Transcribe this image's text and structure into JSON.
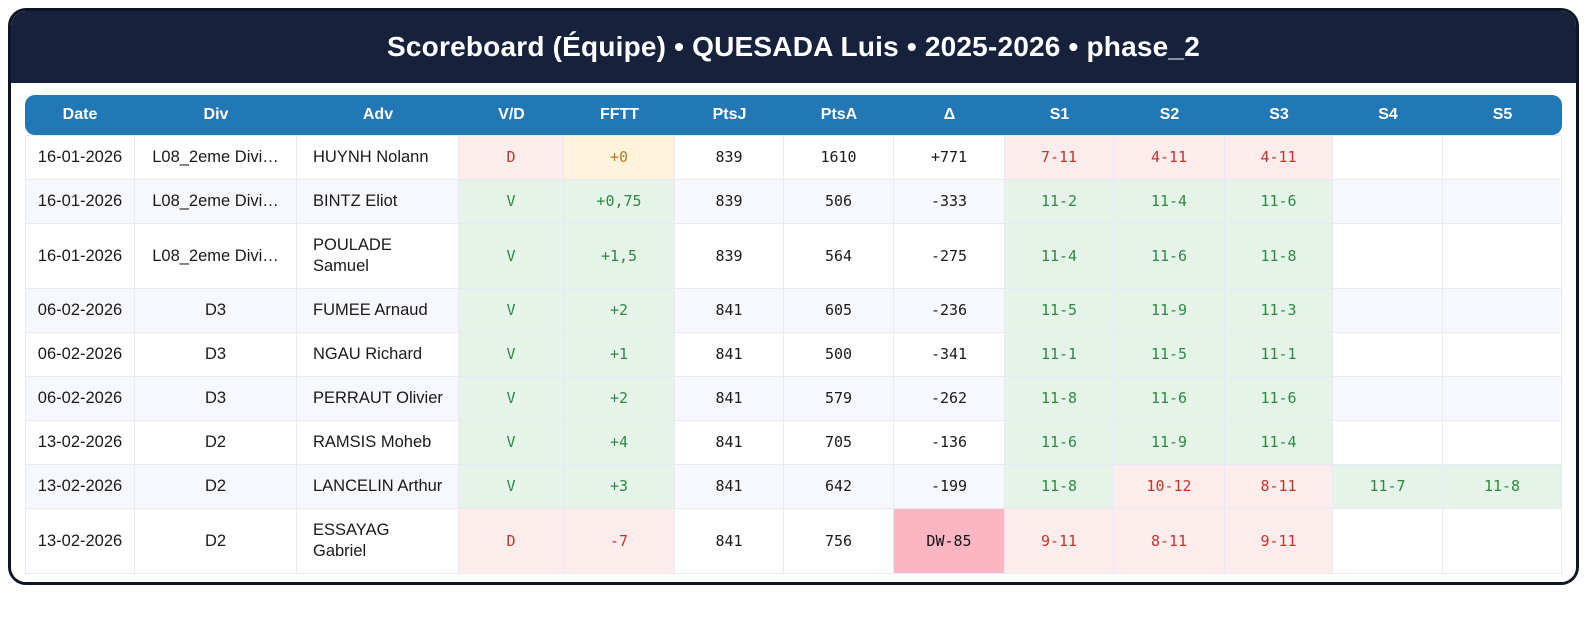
{
  "title": "Scoreboard (Équipe) • QUESADA Luis • 2025-2026 • phase_2",
  "colors": {
    "title_bar_bg": "#16213c",
    "table_header_bg": "#2278b5",
    "win_bg": "#e6f3e9",
    "win_text": "#2c8a43",
    "loss_bg": "#fdecec",
    "loss_text": "#c5332d",
    "zero_bg": "#fcf3da",
    "zero_text": "#b2801c",
    "dw_bg": "#fcb5c2",
    "alt_row_bg": "#f7f8fd"
  },
  "table": {
    "columns": [
      {
        "key": "date",
        "label": "Date"
      },
      {
        "key": "div",
        "label": "Div"
      },
      {
        "key": "adv",
        "label": "Adv"
      },
      {
        "key": "vd",
        "label": "V/D"
      },
      {
        "key": "fftt",
        "label": "FFTT"
      },
      {
        "key": "ptsj",
        "label": "PtsJ"
      },
      {
        "key": "ptsa",
        "label": "PtsA"
      },
      {
        "key": "delta",
        "label": "Δ"
      },
      {
        "key": "s1",
        "label": "S1"
      },
      {
        "key": "s2",
        "label": "S2"
      },
      {
        "key": "s3",
        "label": "S3"
      },
      {
        "key": "s4",
        "label": "S4"
      },
      {
        "key": "s5",
        "label": "S5"
      }
    ],
    "rows": [
      {
        "date": "16-01-2026",
        "div": "L08_2eme Divi…",
        "adv": "HUYNH Nolann",
        "vd": {
          "text": "D",
          "state": "loss"
        },
        "fftt": {
          "text": "+0",
          "state": "zero"
        },
        "ptsj": "839",
        "ptsa": "1610",
        "delta": {
          "text": "+771",
          "state": "normal"
        },
        "sets": [
          {
            "text": "7-11",
            "state": "loss"
          },
          {
            "text": "4-11",
            "state": "loss"
          },
          {
            "text": "4-11",
            "state": "loss"
          },
          {
            "text": "",
            "state": "empty"
          },
          {
            "text": "",
            "state": "empty"
          }
        ]
      },
      {
        "date": "16-01-2026",
        "div": "L08_2eme Divi…",
        "adv": "BINTZ Eliot",
        "vd": {
          "text": "V",
          "state": "win"
        },
        "fftt": {
          "text": "+0,75",
          "state": "win"
        },
        "ptsj": "839",
        "ptsa": "506",
        "delta": {
          "text": "-333",
          "state": "normal"
        },
        "sets": [
          {
            "text": "11-2",
            "state": "win"
          },
          {
            "text": "11-4",
            "state": "win"
          },
          {
            "text": "11-6",
            "state": "win"
          },
          {
            "text": "",
            "state": "empty"
          },
          {
            "text": "",
            "state": "empty"
          }
        ]
      },
      {
        "date": "16-01-2026",
        "div": "L08_2eme Divi…",
        "adv": "POULADE Samuel",
        "vd": {
          "text": "V",
          "state": "win"
        },
        "fftt": {
          "text": "+1,5",
          "state": "win"
        },
        "ptsj": "839",
        "ptsa": "564",
        "delta": {
          "text": "-275",
          "state": "normal"
        },
        "sets": [
          {
            "text": "11-4",
            "state": "win"
          },
          {
            "text": "11-6",
            "state": "win"
          },
          {
            "text": "11-8",
            "state": "win"
          },
          {
            "text": "",
            "state": "empty"
          },
          {
            "text": "",
            "state": "empty"
          }
        ]
      },
      {
        "date": "06-02-2026",
        "div": "D3",
        "adv": "FUMEE Arnaud",
        "vd": {
          "text": "V",
          "state": "win"
        },
        "fftt": {
          "text": "+2",
          "state": "win"
        },
        "ptsj": "841",
        "ptsa": "605",
        "delta": {
          "text": "-236",
          "state": "normal"
        },
        "sets": [
          {
            "text": "11-5",
            "state": "win"
          },
          {
            "text": "11-9",
            "state": "win"
          },
          {
            "text": "11-3",
            "state": "win"
          },
          {
            "text": "",
            "state": "empty"
          },
          {
            "text": "",
            "state": "empty"
          }
        ]
      },
      {
        "date": "06-02-2026",
        "div": "D3",
        "adv": "NGAU Richard",
        "vd": {
          "text": "V",
          "state": "win"
        },
        "fftt": {
          "text": "+1",
          "state": "win"
        },
        "ptsj": "841",
        "ptsa": "500",
        "delta": {
          "text": "-341",
          "state": "normal"
        },
        "sets": [
          {
            "text": "11-1",
            "state": "win"
          },
          {
            "text": "11-5",
            "state": "win"
          },
          {
            "text": "11-1",
            "state": "win"
          },
          {
            "text": "",
            "state": "empty"
          },
          {
            "text": "",
            "state": "empty"
          }
        ]
      },
      {
        "date": "06-02-2026",
        "div": "D3",
        "adv": "PERRAUT Olivier",
        "vd": {
          "text": "V",
          "state": "win"
        },
        "fftt": {
          "text": "+2",
          "state": "win"
        },
        "ptsj": "841",
        "ptsa": "579",
        "delta": {
          "text": "-262",
          "state": "normal"
        },
        "sets": [
          {
            "text": "11-8",
            "state": "win"
          },
          {
            "text": "11-6",
            "state": "win"
          },
          {
            "text": "11-6",
            "state": "win"
          },
          {
            "text": "",
            "state": "empty"
          },
          {
            "text": "",
            "state": "empty"
          }
        ]
      },
      {
        "date": "13-02-2026",
        "div": "D2",
        "adv": "RAMSIS Moheb",
        "vd": {
          "text": "V",
          "state": "win"
        },
        "fftt": {
          "text": "+4",
          "state": "win"
        },
        "ptsj": "841",
        "ptsa": "705",
        "delta": {
          "text": "-136",
          "state": "normal"
        },
        "sets": [
          {
            "text": "11-6",
            "state": "win"
          },
          {
            "text": "11-9",
            "state": "win"
          },
          {
            "text": "11-4",
            "state": "win"
          },
          {
            "text": "",
            "state": "empty"
          },
          {
            "text": "",
            "state": "empty"
          }
        ]
      },
      {
        "date": "13-02-2026",
        "div": "D2",
        "adv": "LANCELIN Arthur",
        "vd": {
          "text": "V",
          "state": "win"
        },
        "fftt": {
          "text": "+3",
          "state": "win"
        },
        "ptsj": "841",
        "ptsa": "642",
        "delta": {
          "text": "-199",
          "state": "normal"
        },
        "sets": [
          {
            "text": "11-8",
            "state": "win"
          },
          {
            "text": "10-12",
            "state": "loss"
          },
          {
            "text": "8-11",
            "state": "loss"
          },
          {
            "text": "11-7",
            "state": "win"
          },
          {
            "text": "11-8",
            "state": "win"
          }
        ]
      },
      {
        "date": "13-02-2026",
        "div": "D2",
        "adv": "ESSAYAG Gabriel",
        "vd": {
          "text": "D",
          "state": "loss"
        },
        "fftt": {
          "text": "-7",
          "state": "loss"
        },
        "ptsj": "841",
        "ptsa": "756",
        "delta": {
          "text": "DW-85",
          "state": "dw"
        },
        "sets": [
          {
            "text": "9-11",
            "state": "loss"
          },
          {
            "text": "8-11",
            "state": "loss"
          },
          {
            "text": "9-11",
            "state": "loss"
          },
          {
            "text": "",
            "state": "empty"
          },
          {
            "text": "",
            "state": "empty"
          }
        ]
      }
    ]
  }
}
